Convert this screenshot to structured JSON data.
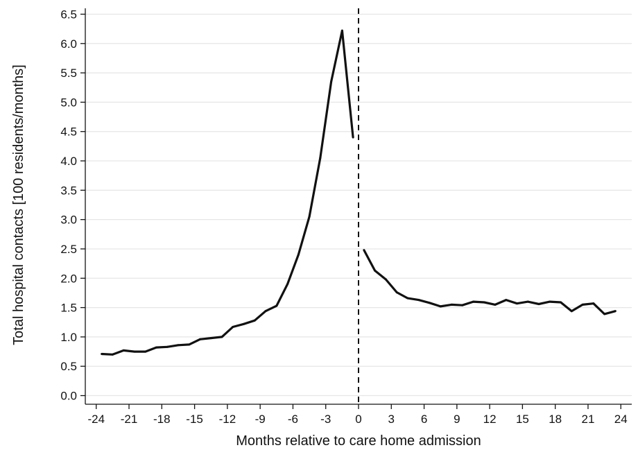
{
  "chart_data": {
    "type": "line",
    "xlabel": "Months relative to care home admission",
    "ylabel": "Total hospital contacts [100 residents/months]",
    "xlim": [
      -25,
      25
    ],
    "ylim": [
      -0.1,
      6.6
    ],
    "x_ticks": [
      -24,
      -21,
      -18,
      -15,
      -12,
      -9,
      -6,
      -3,
      0,
      3,
      6,
      9,
      12,
      15,
      18,
      21,
      24
    ],
    "y_ticks": [
      0.0,
      0.5,
      1.0,
      1.5,
      2.0,
      2.5,
      3.0,
      3.5,
      4.0,
      4.5,
      5.0,
      5.5,
      6.0,
      6.5
    ],
    "y_tick_labels": [
      "0.0",
      "0.5",
      "1.0",
      "1.5",
      "2.0",
      "2.5",
      "3.0",
      "3.5",
      "4.0",
      "4.5",
      "5.0",
      "5.5",
      "6.0",
      "6.5"
    ],
    "grid": "horizontal",
    "reference_line": {
      "x": 0,
      "style": "dashed"
    },
    "series": [
      {
        "segment": "pre-admission",
        "x": [
          -23.5,
          -22.5,
          -21.5,
          -20.5,
          -19.5,
          -18.5,
          -17.5,
          -16.5,
          -15.5,
          -14.5,
          -13.5,
          -12.5,
          -11.5,
          -10.5,
          -9.5,
          -8.5,
          -7.5,
          -6.5,
          -5.5,
          -4.5,
          -3.5,
          -2.5,
          -1.5,
          -0.5
        ],
        "values": [
          0.71,
          0.7,
          0.77,
          0.75,
          0.75,
          0.82,
          0.83,
          0.86,
          0.87,
          0.96,
          0.98,
          1.0,
          1.17,
          1.22,
          1.28,
          1.44,
          1.53,
          1.9,
          2.4,
          3.05,
          4.05,
          5.35,
          6.22,
          4.4
        ]
      },
      {
        "segment": "post-admission",
        "x": [
          0.5,
          1.5,
          2.5,
          3.5,
          4.5,
          5.5,
          6.5,
          7.5,
          8.5,
          9.5,
          10.5,
          11.5,
          12.5,
          13.5,
          14.5,
          15.5,
          16.5,
          17.5,
          18.5,
          19.5,
          20.5,
          21.5,
          22.5,
          23.5
        ],
        "values": [
          2.48,
          2.13,
          1.98,
          1.76,
          1.66,
          1.63,
          1.58,
          1.52,
          1.55,
          1.54,
          1.6,
          1.59,
          1.55,
          1.63,
          1.57,
          1.6,
          1.56,
          1.6,
          1.59,
          1.44,
          1.55,
          1.57,
          1.39,
          1.44
        ]
      }
    ]
  }
}
